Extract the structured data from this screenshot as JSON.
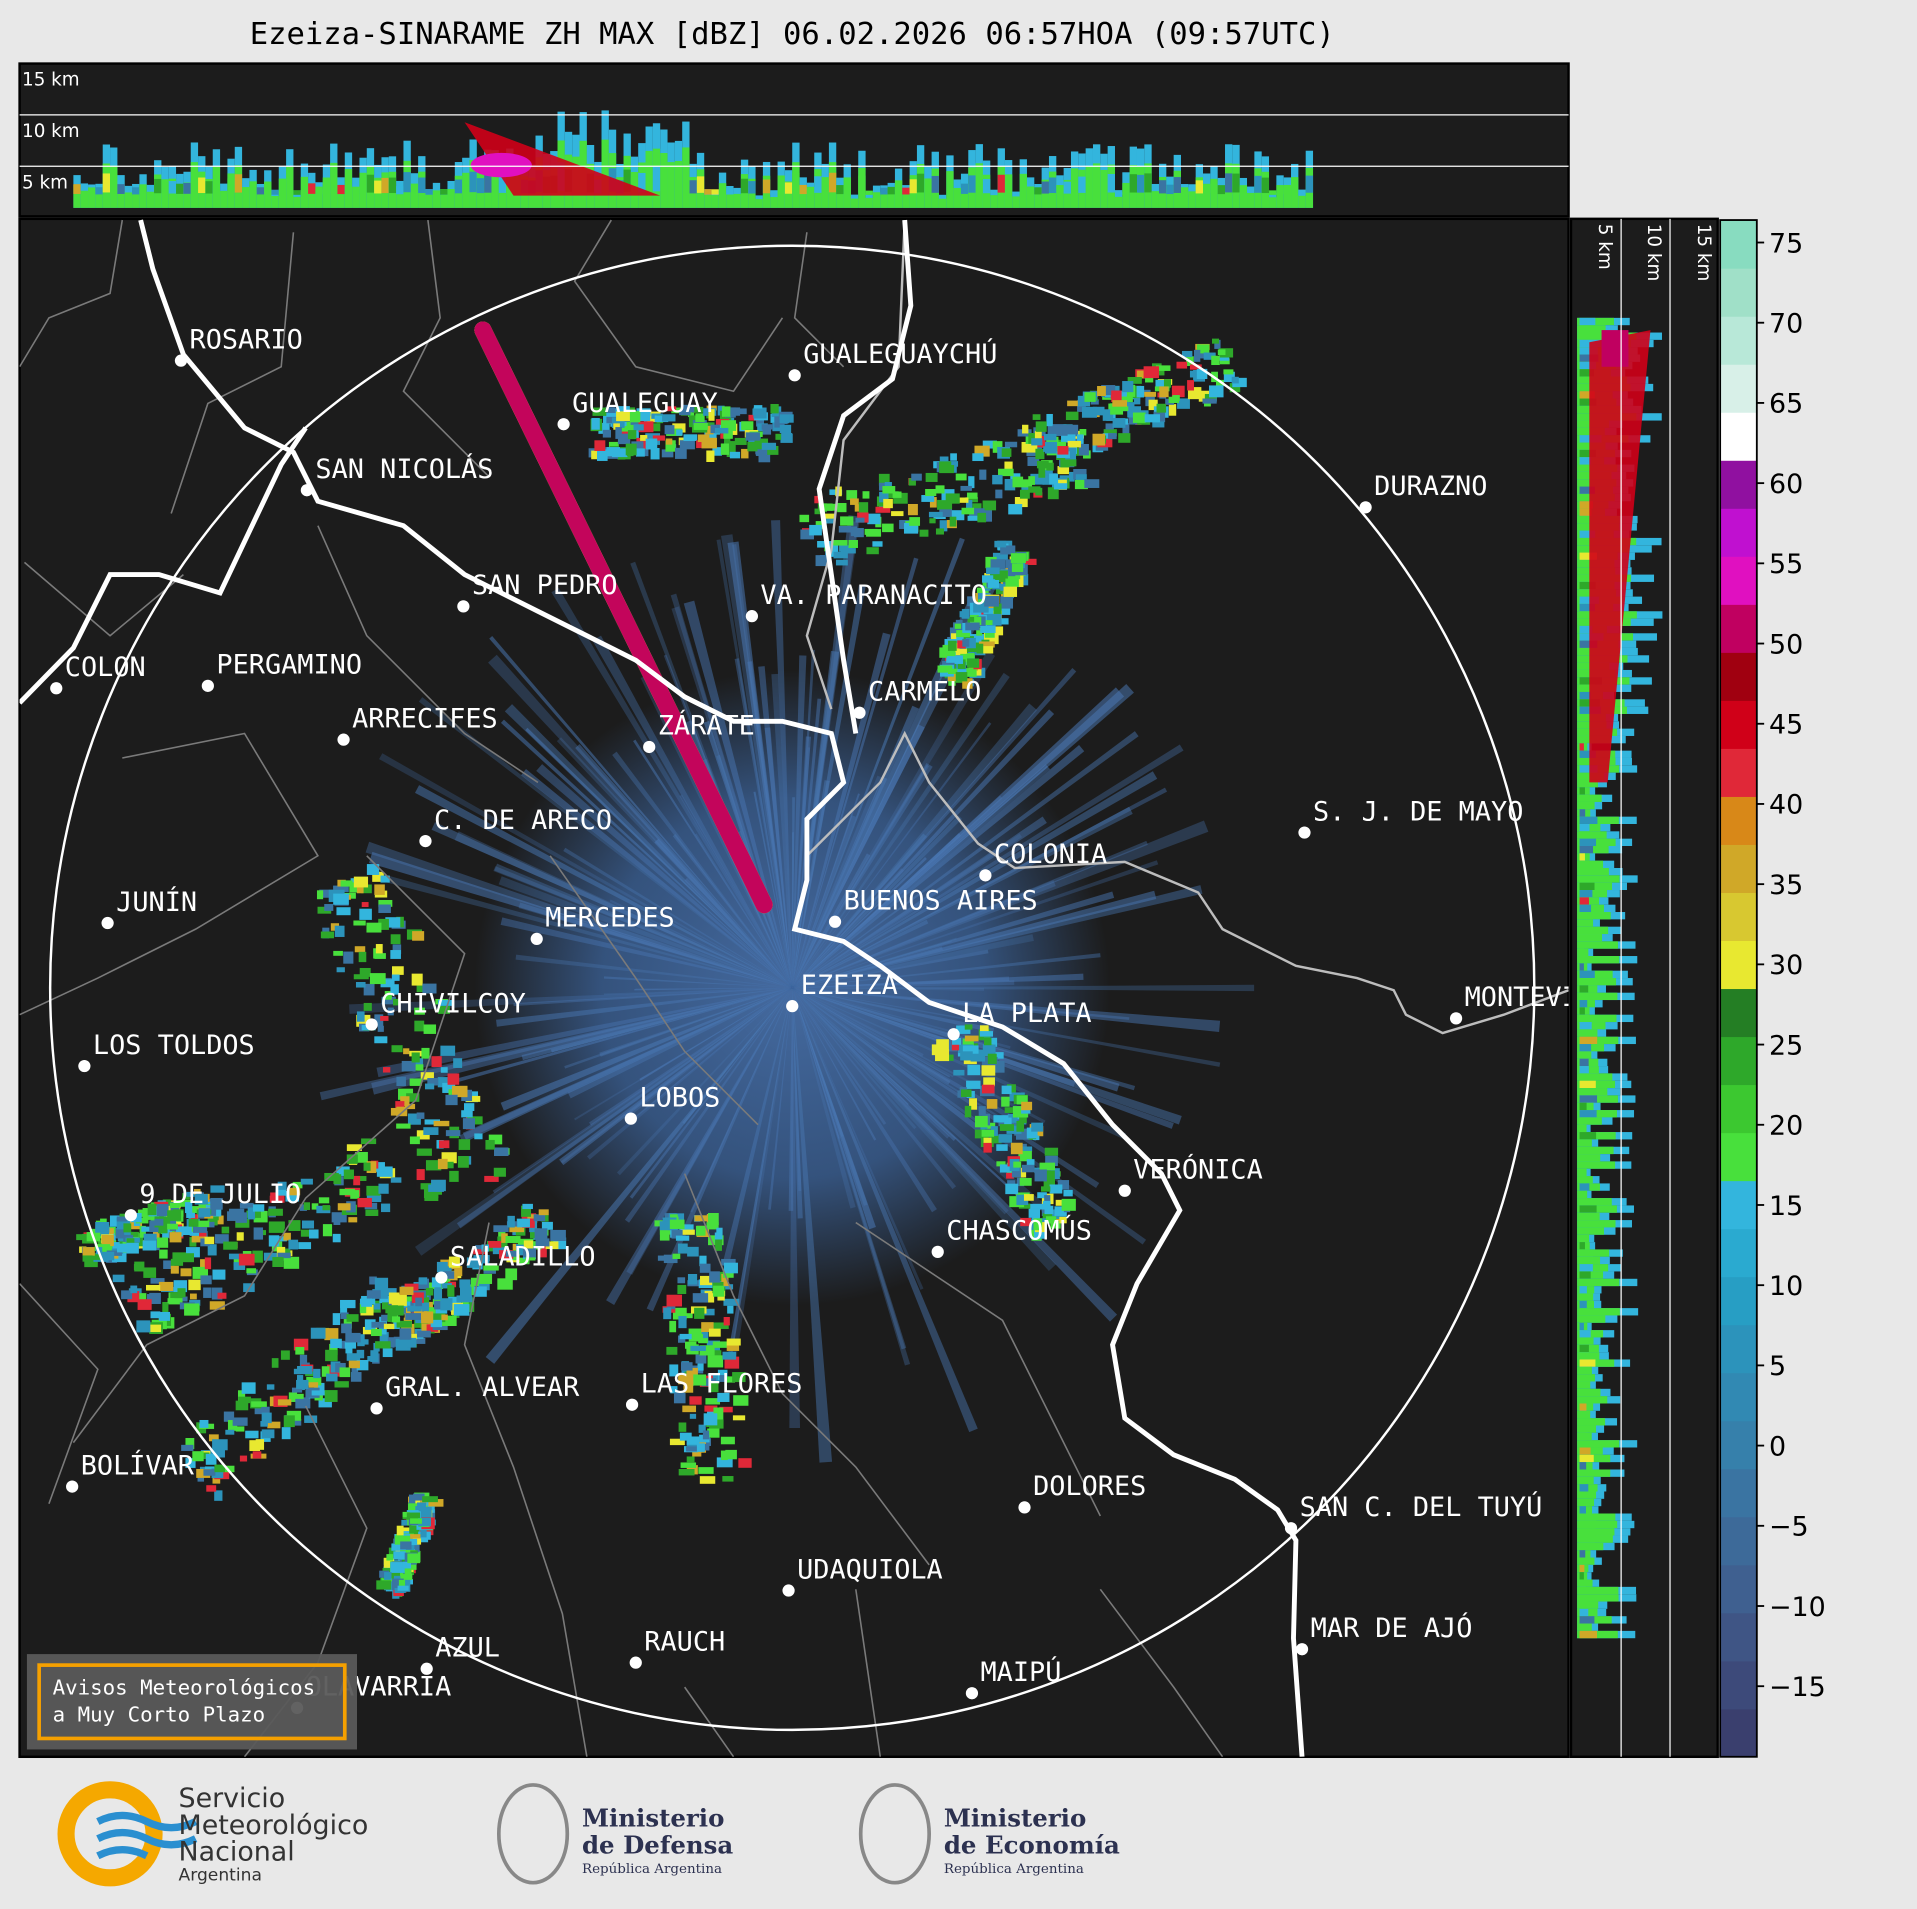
{
  "header": {
    "title": "Ezeiza-SINARAME ZH MAX [dBZ] 06.02.2026 06:57HOA (09:57UTC)"
  },
  "top_panel": {
    "height_labels": [
      "15 km",
      "10 km",
      "5 km"
    ]
  },
  "side_panel": {
    "height_labels": [
      "5 km",
      "10 km",
      "15 km"
    ]
  },
  "map": {
    "cities": [
      "ROSARIO",
      "GUALEGUAYCHÚ",
      "GUALEGUAY",
      "SAN NICOLÁS",
      "DURAZNO",
      "SAN PEDRO",
      "VA. PARANACITO",
      "COLON",
      "PERGAMINO",
      "CARMELO",
      "ARRECIFES",
      "ZÁRATE",
      "S. J. DE MAYO",
      "C. DE ARECO",
      "COLONIA",
      "BUENOS AIRES",
      "JUNÍN",
      "MERCEDES",
      "MONTEVIDEO",
      "EZEIZA",
      "CHIVILCOY",
      "LA PLATA",
      "LOS TOLDOS",
      "LOBOS",
      "VERÓNICA",
      "9 DE JULIO",
      "CHASCOMÚS",
      "SALADILLO",
      "GRAL. ALVEAR",
      "LAS FLORES",
      "BOLÍVAR",
      "DOLORES",
      "SAN C. DEL TUYÚ",
      "UDAQUIOLA",
      "RAUCH",
      "MAR DE AJÓ",
      "AZUL",
      "OLAVARRÍA",
      "MAIPÚ"
    ],
    "warning_box": [
      "Avisos Meteorológicos",
      "a Muy Corto Plazo"
    ]
  },
  "colorbar": {
    "range": [
      -19.4,
      76.4
    ],
    "ticks": [
      {
        "value": -15,
        "label": "−15"
      },
      {
        "value": -10,
        "label": "−10"
      },
      {
        "value": -5,
        "label": "−5"
      },
      0,
      5,
      10,
      15,
      20,
      25,
      30,
      35,
      40,
      45,
      50,
      55,
      60,
      65,
      70,
      75
    ],
    "colors": [
      "#3a3f6e",
      "#3d4a7a",
      "#3f5585",
      "#3f6090",
      "#3d6a99",
      "#3a74a2",
      "#3680ab",
      "#3189b3",
      "#2c93bb",
      "#279ec4",
      "#2aaad0",
      "#33b5dd",
      "#48e03c",
      "#3cc830",
      "#2ea82a",
      "#247e24",
      "#e8e830",
      "#d8c830",
      "#d0a828",
      "#d88818",
      "#e02838",
      "#d00018",
      "#a00010",
      "#c00060",
      "#e010c0",
      "#c010d0",
      "#9010a0",
      "#ffffff",
      "#d8f0e8",
      "#b8e8d8",
      "#a0e0c8",
      "#88dcc0"
    ]
  },
  "footer": {
    "smn": [
      "Servicio",
      "Meteorológico",
      "Nacional",
      "Argentina"
    ],
    "defensa": [
      "Ministerio",
      "de Defensa",
      "República Argentina"
    ],
    "economia": [
      "Ministerio",
      "de Economía",
      "República Argentina"
    ]
  }
}
